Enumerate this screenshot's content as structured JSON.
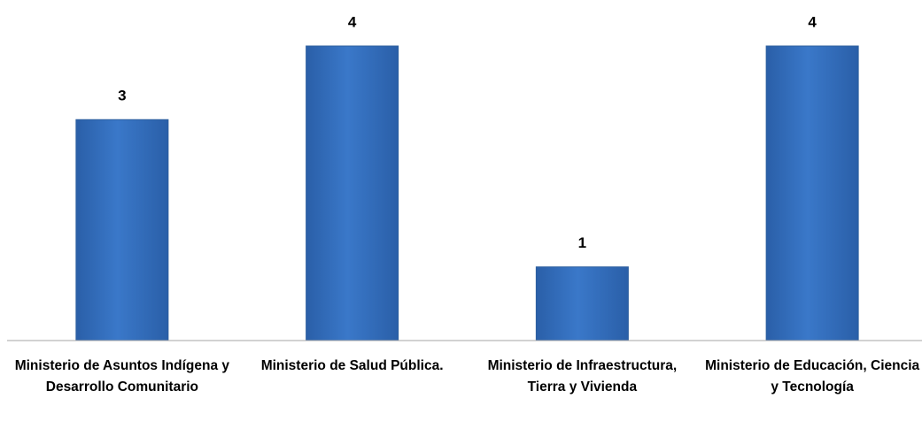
{
  "chart_data": {
    "type": "bar",
    "categories": [
      "Ministerio de Asuntos Indígena y Desarrollo Comunitario",
      "Ministerio de Salud Pública.",
      "Ministerio de Infraestructura, Tierra y Vivienda",
      "Ministerio de Educación, Ciencia y Tecnología"
    ],
    "values": [
      3,
      4,
      1,
      4
    ],
    "color": "#3a78c9",
    "ylim": [
      0,
      4
    ]
  }
}
